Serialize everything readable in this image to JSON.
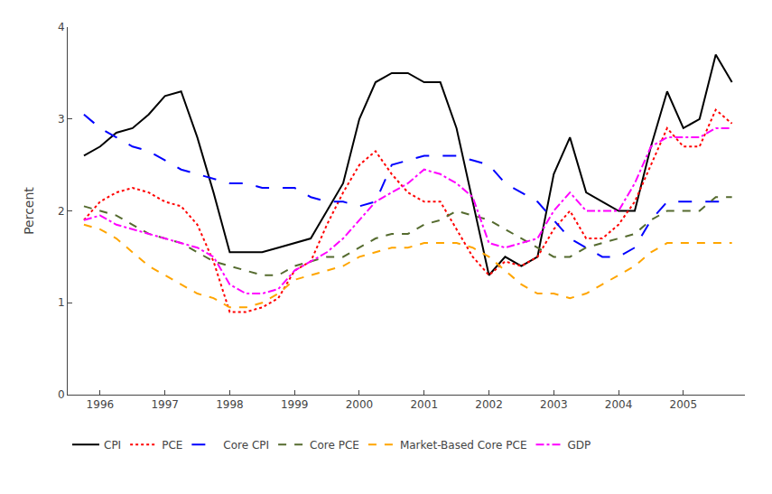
{
  "chart_data": {
    "type": "line",
    "y_label": "Percent",
    "x": [
      1995.75,
      1996.0,
      1996.25,
      1996.5,
      1996.75,
      1997.0,
      1997.25,
      1997.5,
      1997.75,
      1998.0,
      1998.25,
      1998.5,
      1998.75,
      1999.0,
      1999.25,
      1999.5,
      1999.75,
      2000.0,
      2000.25,
      2000.5,
      2000.75,
      2001.0,
      2001.25,
      2001.5,
      2001.75,
      2002.0,
      2002.25,
      2002.5,
      2002.75,
      2003.0,
      2003.25,
      2003.5,
      2003.75,
      2004.0,
      2004.25,
      2004.5,
      2004.75,
      2005.0,
      2005.25,
      2005.5,
      2005.75
    ],
    "series": [
      {
        "name": "CPI",
        "color": "#000000",
        "line_style": "solid",
        "values": [
          2.6,
          2.7,
          2.85,
          2.9,
          3.05,
          3.25,
          3.3,
          2.8,
          2.2,
          1.55,
          1.55,
          1.55,
          1.6,
          1.65,
          1.7,
          2.0,
          2.3,
          3.0,
          3.4,
          3.5,
          3.5,
          3.4,
          3.4,
          2.9,
          2.1,
          1.3,
          1.5,
          1.4,
          1.5,
          2.4,
          2.8,
          2.2,
          2.1,
          2.0,
          2.0,
          2.7,
          3.3,
          2.9,
          3.0,
          3.7,
          3.4
        ]
      },
      {
        "name": "PCE",
        "color": "#ff0000",
        "line_style": "dotted",
        "values": [
          1.9,
          2.1,
          2.2,
          2.25,
          2.2,
          2.1,
          2.05,
          1.85,
          1.45,
          0.9,
          0.9,
          0.95,
          1.05,
          1.35,
          1.45,
          1.85,
          2.2,
          2.5,
          2.65,
          2.4,
          2.2,
          2.1,
          2.1,
          1.8,
          1.5,
          1.3,
          1.45,
          1.4,
          1.5,
          1.8,
          2.0,
          1.7,
          1.7,
          1.85,
          2.1,
          2.5,
          2.9,
          2.7,
          2.7,
          3.1,
          2.95
        ]
      },
      {
        "name": "Core CPI",
        "color": "#0000ff",
        "line_style": "longdash",
        "values": [
          3.05,
          2.9,
          2.8,
          2.7,
          2.65,
          2.55,
          2.45,
          2.4,
          2.35,
          2.3,
          2.3,
          2.25,
          2.25,
          2.25,
          2.15,
          2.1,
          2.1,
          2.05,
          2.1,
          2.5,
          2.55,
          2.6,
          2.6,
          2.6,
          2.55,
          2.5,
          2.3,
          2.2,
          2.1,
          1.9,
          1.7,
          1.6,
          1.5,
          1.5,
          1.6,
          1.9,
          2.1,
          2.1,
          2.1,
          2.1,
          2.1
        ]
      },
      {
        "name": "Core PCE",
        "color": "#556b2f",
        "line_style": "dashed",
        "values": [
          2.05,
          2.0,
          1.95,
          1.85,
          1.75,
          1.7,
          1.65,
          1.55,
          1.45,
          1.4,
          1.35,
          1.3,
          1.3,
          1.4,
          1.45,
          1.5,
          1.5,
          1.6,
          1.7,
          1.75,
          1.75,
          1.85,
          1.9,
          2.0,
          1.95,
          1.9,
          1.8,
          1.7,
          1.6,
          1.5,
          1.5,
          1.6,
          1.65,
          1.7,
          1.75,
          1.9,
          2.0,
          2.0,
          2.0,
          2.15,
          2.15
        ]
      },
      {
        "name": "Market-Based Core PCE",
        "color": "#ffa500",
        "line_style": "dashed",
        "values": [
          1.85,
          1.8,
          1.7,
          1.55,
          1.4,
          1.3,
          1.2,
          1.1,
          1.05,
          0.95,
          0.95,
          1.0,
          1.1,
          1.25,
          1.3,
          1.35,
          1.4,
          1.5,
          1.55,
          1.6,
          1.6,
          1.65,
          1.65,
          1.65,
          1.6,
          1.5,
          1.35,
          1.2,
          1.1,
          1.1,
          1.05,
          1.1,
          1.2,
          1.3,
          1.4,
          1.55,
          1.65,
          1.65,
          1.65,
          1.65,
          1.65
        ]
      },
      {
        "name": "GDP",
        "color": "#ff00ff",
        "line_style": "dashdot",
        "values": [
          1.9,
          1.95,
          1.85,
          1.8,
          1.75,
          1.7,
          1.65,
          1.6,
          1.5,
          1.2,
          1.1,
          1.1,
          1.15,
          1.35,
          1.45,
          1.55,
          1.7,
          1.9,
          2.1,
          2.2,
          2.3,
          2.45,
          2.4,
          2.3,
          2.15,
          1.65,
          1.6,
          1.65,
          1.7,
          2.0,
          2.2,
          2.0,
          2.0,
          2.0,
          2.3,
          2.7,
          2.8,
          2.8,
          2.8,
          2.9,
          2.9
        ]
      }
    ],
    "xlim": [
      1995.5,
      2005.95
    ],
    "xticks": [
      1996,
      1997,
      1998,
      1999,
      2000,
      2001,
      2002,
      2003,
      2004,
      2005
    ],
    "ylim": [
      0,
      4.0
    ],
    "yticks": [
      0,
      1,
      2,
      3,
      4
    ],
    "grid": false,
    "legend": "lower left"
  }
}
